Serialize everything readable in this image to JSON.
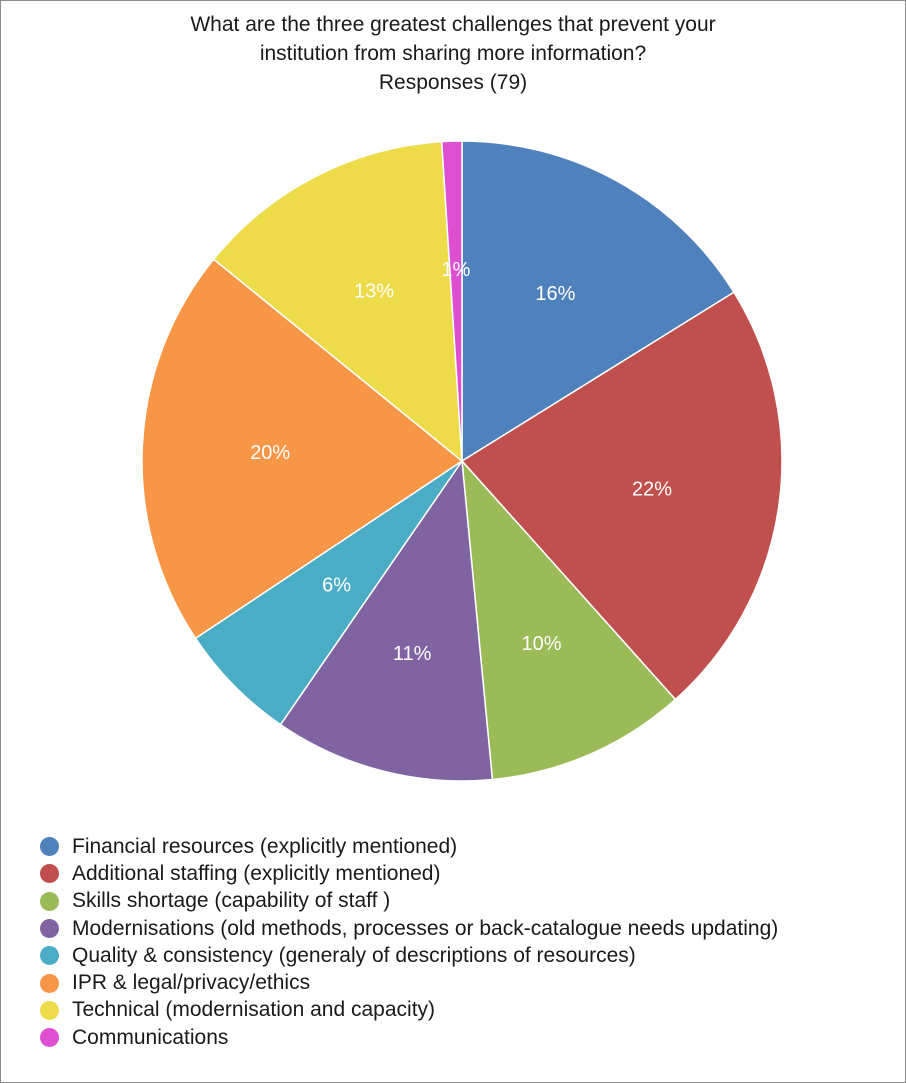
{
  "chart_data": {
    "type": "pie",
    "title": [
      "What are the three greatest challenges that prevent your",
      "institution from sharing more information?"
    ],
    "subtitle": "Responses (79)",
    "legend_position": "bottom-left",
    "slices": [
      {
        "label": "Financial resources (explicitly mentioned)",
        "value": 16,
        "display": "16%",
        "color": "#4f81bd"
      },
      {
        "label": "Additional staffing (explicitly mentioned)",
        "value": 22,
        "display": "22%",
        "color": "#c0504d"
      },
      {
        "label": "Skills shortage (capability of staff )",
        "value": 10,
        "display": "10%",
        "color": "#9bbb59"
      },
      {
        "label": "Modernisations (old methods, processes or back-catalogue needs updating)",
        "value": 11,
        "display": "11%",
        "color": "#8064a2"
      },
      {
        "label": "Quality & consistency (generaly of descriptions of resources)",
        "value": 6,
        "display": "6%",
        "color": "#4bacc6"
      },
      {
        "label": "IPR & legal/privacy/ethics",
        "value": 20,
        "display": "20%",
        "color": "#f79646"
      },
      {
        "label": "Technical (modernisation and capacity)",
        "value": 13,
        "display": "13%",
        "color": "#eedb4a"
      },
      {
        "label": "Communications",
        "value": 1,
        "display": "1%",
        "color": "#de4fd2"
      }
    ]
  }
}
